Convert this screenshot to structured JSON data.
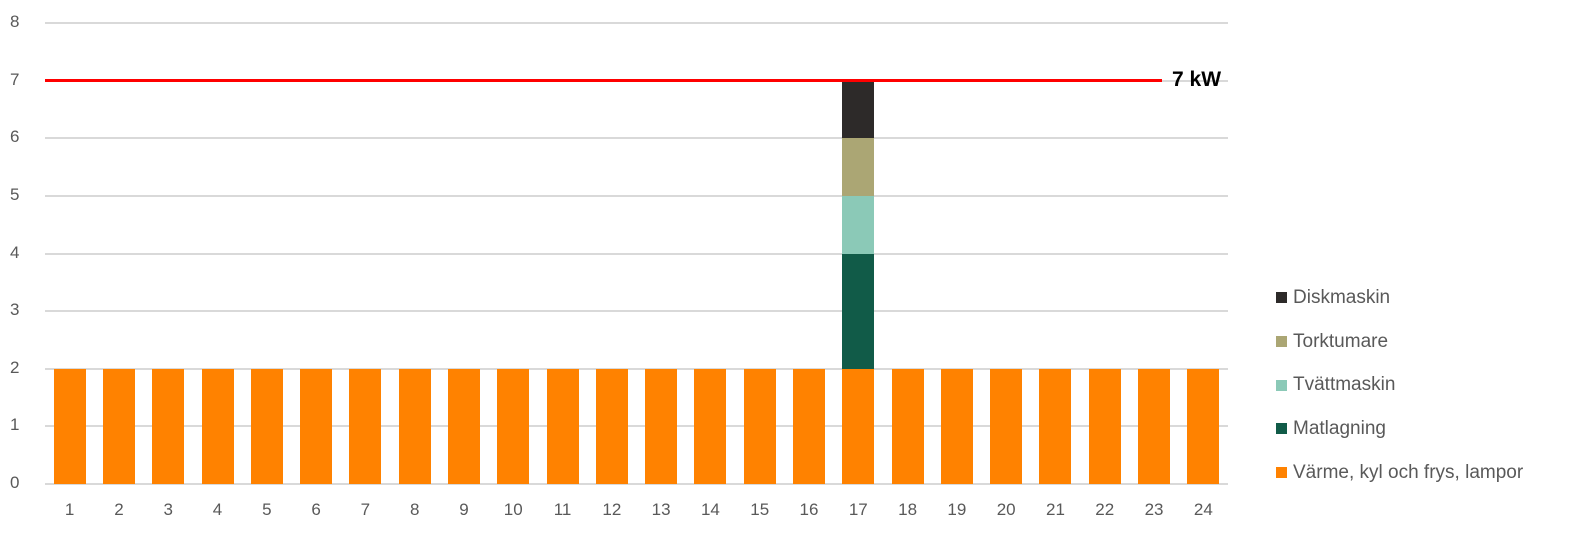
{
  "chart_data": {
    "type": "bar",
    "stacked": true,
    "title": "",
    "xlabel": "",
    "ylabel": "",
    "ylim": [
      0,
      8
    ],
    "yticks": [
      "0",
      "1",
      "2",
      "3",
      "4",
      "5",
      "6",
      "7",
      "8"
    ],
    "grid": true,
    "legend_position": "right",
    "categories": [
      "1",
      "2",
      "3",
      "4",
      "5",
      "6",
      "7",
      "8",
      "9",
      "10",
      "11",
      "12",
      "13",
      "14",
      "15",
      "16",
      "17",
      "18",
      "19",
      "20",
      "21",
      "22",
      "23",
      "24"
    ],
    "series": [
      {
        "name": "Värme, kyl och frys, lampor",
        "color": "#ff8200",
        "values": [
          2,
          2,
          2,
          2,
          2,
          2,
          2,
          2,
          2,
          2,
          2,
          2,
          2,
          2,
          2,
          2,
          2,
          2,
          2,
          2,
          2,
          2,
          2,
          2
        ]
      },
      {
        "name": "Matlagning",
        "color": "#115b48",
        "values": [
          0,
          0,
          0,
          0,
          0,
          0,
          0,
          0,
          0,
          0,
          0,
          0,
          0,
          0,
          0,
          0,
          2,
          0,
          0,
          0,
          0,
          0,
          0,
          0
        ]
      },
      {
        "name": "Tvättmaskin",
        "color": "#8bc9b7",
        "values": [
          0,
          0,
          0,
          0,
          0,
          0,
          0,
          0,
          0,
          0,
          0,
          0,
          0,
          0,
          0,
          0,
          1,
          0,
          0,
          0,
          0,
          0,
          0,
          0
        ]
      },
      {
        "name": "Torktumare",
        "color": "#aba674",
        "values": [
          0,
          0,
          0,
          0,
          0,
          0,
          0,
          0,
          0,
          0,
          0,
          0,
          0,
          0,
          0,
          0,
          1,
          0,
          0,
          0,
          0,
          0,
          0,
          0
        ]
      },
      {
        "name": "Diskmaskin",
        "color": "#2d2a29",
        "values": [
          0,
          0,
          0,
          0,
          0,
          0,
          0,
          0,
          0,
          0,
          0,
          0,
          0,
          0,
          0,
          0,
          1,
          0,
          0,
          0,
          0,
          0,
          0,
          0
        ]
      }
    ],
    "annotations": [
      {
        "type": "hline",
        "y": 7,
        "color": "#ff0000",
        "label": "7 kW"
      }
    ],
    "legend_order": [
      "Diskmaskin",
      "Torktumare",
      "Tvättmaskin",
      "Matlagning",
      "Värme, kyl och frys, lampor"
    ]
  }
}
